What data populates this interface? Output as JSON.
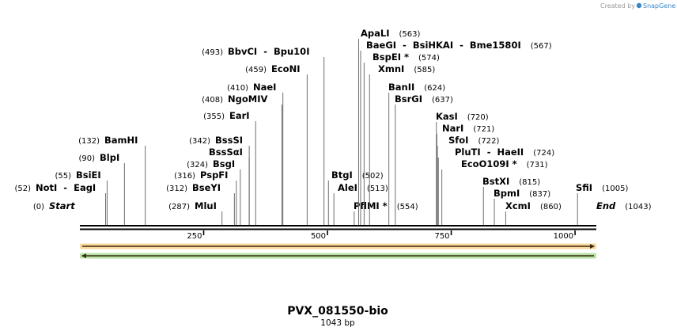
{
  "credit": {
    "prefix": "Created by",
    "brand": "SnapGene"
  },
  "map": {
    "title": "PVX_081550-bio",
    "length_label": "1043 bp",
    "length": 1043,
    "ticks": [
      {
        "pos": 250,
        "label": "250"
      },
      {
        "pos": 500,
        "label": "500"
      },
      {
        "pos": 750,
        "label": "750"
      },
      {
        "pos": 1000,
        "label": "1000"
      }
    ],
    "features": [
      {
        "type": "arrow",
        "direction": "forward",
        "start": 1,
        "end": 1043,
        "color": "#f5a623"
      },
      {
        "type": "arrow",
        "direction": "reverse",
        "start": 1,
        "end": 1043,
        "color": "#5fbf3c"
      }
    ],
    "sites": [
      {
        "name": "Start",
        "pos": 0,
        "pos_label": "(0)",
        "side": "left",
        "italic": true
      },
      {
        "name": "NotI  -  EagI",
        "pos": 52,
        "pos_label": "(52)",
        "side": "left",
        "italic": false
      },
      {
        "name": "BsiEI",
        "pos": 55,
        "pos_label": "(55)",
        "side": "left",
        "italic": false
      },
      {
        "name": "BlpI",
        "pos": 90,
        "pos_label": "(90)",
        "side": "left",
        "italic": false
      },
      {
        "name": "BamHI",
        "pos": 132,
        "pos_label": "(132)",
        "side": "left",
        "italic": false
      },
      {
        "name": "MluI",
        "pos": 287,
        "pos_label": "(287)",
        "side": "left",
        "italic": false
      },
      {
        "name": "BseYI",
        "pos": 312,
        "pos_label": "(312)",
        "side": "left",
        "italic": false
      },
      {
        "name": "PspFI",
        "pos": 316,
        "pos_label": "(316)",
        "side": "left",
        "italic": false
      },
      {
        "name": "BsgI",
        "pos": 324,
        "pos_label": "(324)",
        "side": "left",
        "italic": false
      },
      {
        "name": "BssSαI",
        "pos": 342,
        "pos_label": "",
        "side": "left",
        "italic": false
      },
      {
        "name": "BssSI",
        "pos": 342,
        "pos_label": "(342)",
        "side": "left",
        "italic": false
      },
      {
        "name": "EarI",
        "pos": 355,
        "pos_label": "(355)",
        "side": "left",
        "italic": false
      },
      {
        "name": "NgoMIV",
        "pos": 408,
        "pos_label": "(408)",
        "side": "left",
        "italic": false
      },
      {
        "name": "NaeI",
        "pos": 410,
        "pos_label": "(410)",
        "side": "left",
        "italic": false
      },
      {
        "name": "EcoNI",
        "pos": 459,
        "pos_label": "(459)",
        "side": "left",
        "italic": false
      },
      {
        "name": "BbvCI  -  Bpu10I",
        "pos": 493,
        "pos_label": "(493)",
        "side": "left",
        "italic": false
      },
      {
        "name": "BtgI",
        "pos": 502,
        "pos_label": "(502)",
        "side": "right",
        "italic": false
      },
      {
        "name": "AleI",
        "pos": 513,
        "pos_label": "(513)",
        "side": "right",
        "italic": false
      },
      {
        "name": "PflMI *",
        "pos": 554,
        "pos_label": "(554)",
        "side": "right",
        "italic": false
      },
      {
        "name": "ApaLI",
        "pos": 563,
        "pos_label": "(563)",
        "side": "right",
        "italic": false
      },
      {
        "name": "BaeGI  -  BsiHKAI  -  Bme1580I",
        "pos": 567,
        "pos_label": "(567)",
        "side": "right",
        "italic": false
      },
      {
        "name": "BspEI *",
        "pos": 574,
        "pos_label": "(574)",
        "side": "right",
        "italic": false
      },
      {
        "name": "XmnI",
        "pos": 585,
        "pos_label": "(585)",
        "side": "right",
        "italic": false
      },
      {
        "name": "BanII",
        "pos": 624,
        "pos_label": "(624)",
        "side": "right",
        "italic": false
      },
      {
        "name": "BsrGI",
        "pos": 637,
        "pos_label": "(637)",
        "side": "right",
        "italic": false
      },
      {
        "name": "KasI",
        "pos": 720,
        "pos_label": "(720)",
        "side": "right",
        "italic": false
      },
      {
        "name": "NarI",
        "pos": 721,
        "pos_label": "(721)",
        "side": "right",
        "italic": false
      },
      {
        "name": "SfoI",
        "pos": 722,
        "pos_label": "(722)",
        "side": "right",
        "italic": false
      },
      {
        "name": "PluTI  -  HaeII",
        "pos": 724,
        "pos_label": "(724)",
        "side": "right",
        "italic": false
      },
      {
        "name": "EcoO109I *",
        "pos": 731,
        "pos_label": "(731)",
        "side": "right",
        "italic": false
      },
      {
        "name": "BstXI",
        "pos": 815,
        "pos_label": "(815)",
        "side": "right",
        "italic": false
      },
      {
        "name": "BpmI",
        "pos": 837,
        "pos_label": "(837)",
        "side": "right",
        "italic": false
      },
      {
        "name": "XcmI",
        "pos": 860,
        "pos_label": "(860)",
        "side": "right",
        "italic": false
      },
      {
        "name": "SfiI",
        "pos": 1005,
        "pos_label": "(1005)",
        "side": "right",
        "italic": false
      },
      {
        "name": "End",
        "pos": 1043,
        "pos_label": "(1043)",
        "side": "right",
        "italic": true
      }
    ]
  }
}
